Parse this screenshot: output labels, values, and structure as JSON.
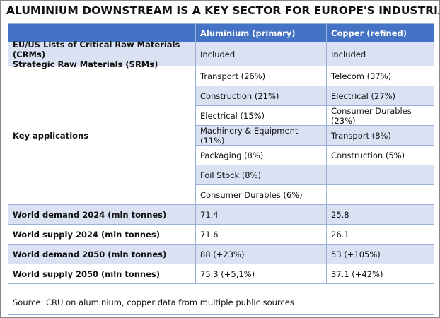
{
  "title": "ALUMINIUM DOWNSTREAM IS A KEY SECTOR FOR EUROPE'S INDUSTRIAL FUTURE",
  "table": {
    "columns": [
      "Aluminium (primary)",
      "Copper (refined)"
    ],
    "rows": [
      {
        "label": [
          "EU/US Lists of Critical Raw Materials (CRMs)",
          "Strategic Raw Materials (SRMs)"
        ],
        "values": [
          "Included",
          "Included"
        ]
      },
      {
        "label": [
          "Key applications"
        ],
        "lists": [
          [
            "Transport (26%)",
            "Construction (21%)",
            "Electrical (15%)",
            "Machinery & Equipment (11%)",
            "Packaging (8%)",
            "Foil Stock (8%)",
            "Consumer Durables (6%)"
          ],
          [
            "Telecom (37%)",
            "Electrical (27%)",
            "Consumer Durables (23%)",
            "Transport (8%)",
            "Construction (5%)"
          ]
        ]
      },
      {
        "label": [
          "World demand 2024 (mln tonnes)"
        ],
        "values": [
          "71.4",
          "25.8"
        ]
      },
      {
        "label": [
          "World supply 2024 (mln tonnes)"
        ],
        "values": [
          "71.6",
          "26.1"
        ]
      },
      {
        "label": [
          "World demand 2050 (mln tonnes)"
        ],
        "values": [
          "88 (+23%)",
          "53 (+105%)"
        ]
      },
      {
        "label": [
          "World supply 2050 (mln tonnes)"
        ],
        "values": [
          "75.3 (+5,1%)",
          "37.1 (+42%)"
        ]
      }
    ],
    "source": "Source: CRU on aluminium, copper data from multiple public sources"
  }
}
